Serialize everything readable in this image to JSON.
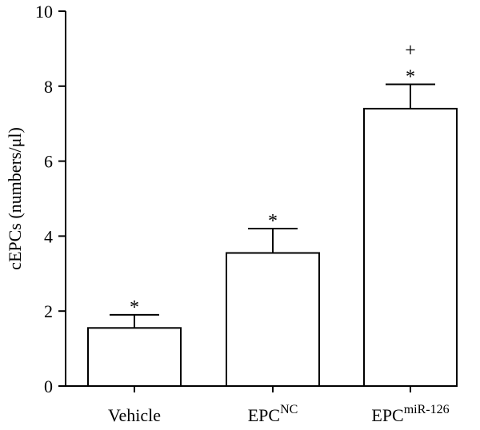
{
  "chart_data": {
    "type": "bar",
    "ylabel": "cEPCs (numbers/μl)",
    "ylim": [
      0,
      10
    ],
    "yticks": [
      0,
      2,
      4,
      6,
      8,
      10
    ],
    "categories": [
      {
        "base": "Vehicle",
        "sup": ""
      },
      {
        "base": "EPC",
        "sup": "NC"
      },
      {
        "base": "EPC",
        "sup": "miR-126"
      }
    ],
    "values": [
      1.55,
      3.55,
      7.4
    ],
    "errors": [
      0.35,
      0.65,
      0.65
    ],
    "annotations": [
      [
        "*"
      ],
      [
        "*"
      ],
      [
        "*",
        "+"
      ]
    ],
    "grid": false
  }
}
